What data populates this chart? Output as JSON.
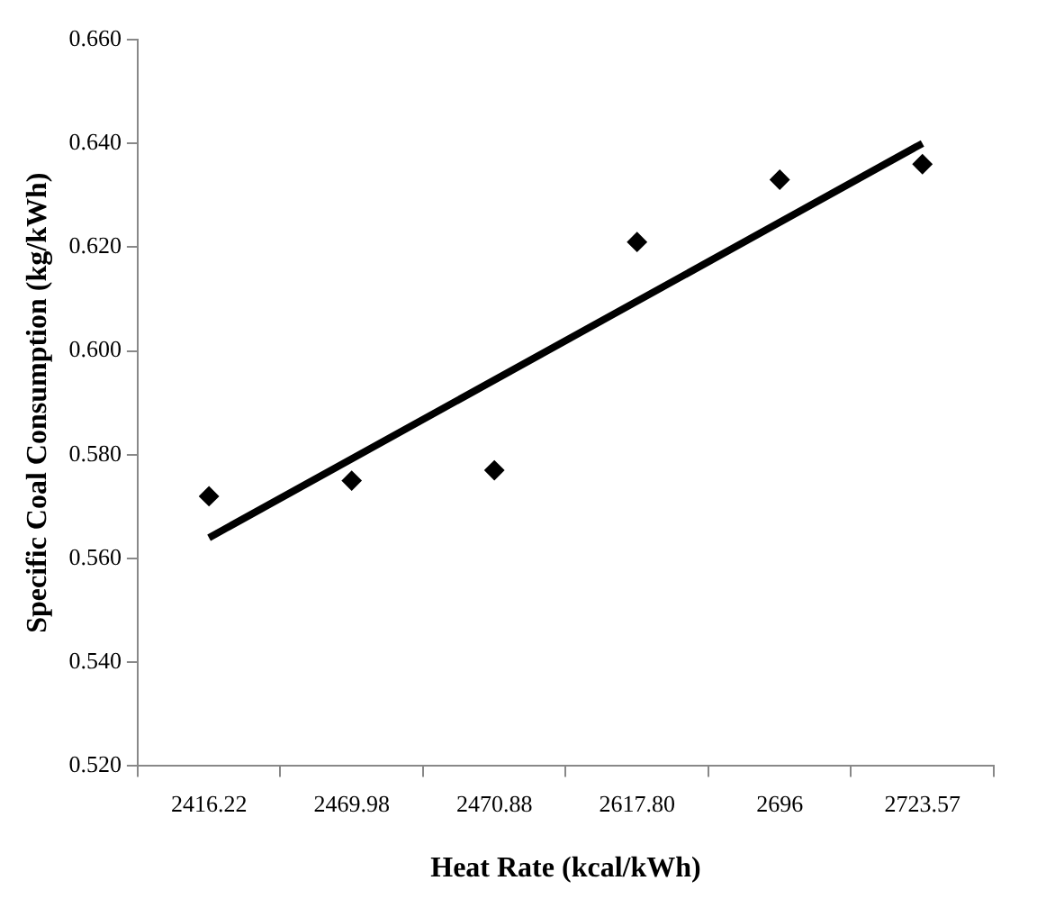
{
  "chart_data": {
    "type": "scatter",
    "xlabel": "Heat Rate (kcal/kWh)",
    "ylabel": "Specific Coal Consumption (kg/kWh)",
    "categories": [
      "2416.22",
      "2469.98",
      "2470.88",
      "2617.80",
      "2696",
      "2723.57"
    ],
    "series": [
      {
        "color": "#000000",
        "marker": "diamond",
        "values": [
          0.572,
          0.575,
          0.577,
          0.621,
          0.633,
          0.636
        ]
      },
      {
        "type": "line",
        "color": "#000000",
        "line_style": "solid",
        "marker": "none",
        "x": [
          "2416.22",
          "2723.57"
        ],
        "values": [
          0.564,
          0.64
        ]
      }
    ],
    "ylim": [
      0.52,
      0.66
    ],
    "yticks": [
      {
        "value": 0.52,
        "label": "0.520"
      },
      {
        "value": 0.54,
        "label": "0.540"
      },
      {
        "value": 0.56,
        "label": "0.560"
      },
      {
        "value": 0.58,
        "label": "0.580"
      },
      {
        "value": 0.6,
        "label": "0.600"
      },
      {
        "value": 0.62,
        "label": "0.620"
      },
      {
        "value": 0.64,
        "label": "0.640"
      },
      {
        "value": 0.66,
        "label": "0.660"
      }
    ],
    "grid": false,
    "legend": false
  }
}
